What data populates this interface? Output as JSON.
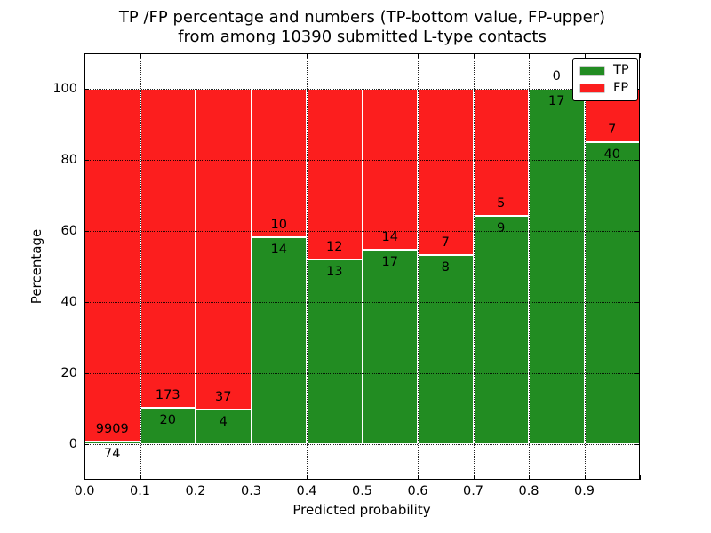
{
  "figure": {
    "title_line1": "TP /FP percentage and numbers (TP-bottom value, FP-upper)",
    "title_line2": "from among 10390 submitted L-type contacts"
  },
  "chart_data": {
    "type": "bar",
    "stacked": true,
    "title": "TP /FP percentage and numbers (TP-bottom value, FP-upper)\nfrom among 10390 submitted L-type contacts",
    "xlabel": "Predicted probability",
    "ylabel": "Percentage",
    "total_contacts": 10390,
    "xlim": [
      0.0,
      1.0
    ],
    "ylim": [
      -10,
      110
    ],
    "grid": true,
    "legend_position": "upper right",
    "bin_edges": [
      0.0,
      0.1,
      0.2,
      0.3,
      0.4,
      0.5,
      0.6,
      0.7,
      0.8,
      0.9,
      1.0
    ],
    "categories": [
      "0.0-0.1",
      "0.1-0.2",
      "0.2-0.3",
      "0.3-0.4",
      "0.4-0.5",
      "0.5-0.6",
      "0.6-0.7",
      "0.7-0.8",
      "0.8-0.9",
      "0.9-1.0"
    ],
    "series": [
      {
        "name": "TP",
        "color": "#228c22",
        "counts": [
          74,
          20,
          4,
          14,
          13,
          17,
          8,
          9,
          17,
          40
        ]
      },
      {
        "name": "FP",
        "color": "#fc1e1e",
        "counts": [
          9909,
          173,
          37,
          10,
          12,
          14,
          7,
          5,
          0,
          7
        ]
      }
    ],
    "tp_percent": [
      0.74,
      10.36,
      9.76,
      58.33,
      52.0,
      54.84,
      53.33,
      64.29,
      100.0,
      85.11
    ],
    "xticks": [
      "0.0",
      "0.1",
      "0.2",
      "0.3",
      "0.4",
      "0.5",
      "0.6",
      "0.7",
      "0.8",
      "0.9"
    ],
    "yticks": [
      "0",
      "20",
      "40",
      "60",
      "80",
      "100"
    ]
  }
}
